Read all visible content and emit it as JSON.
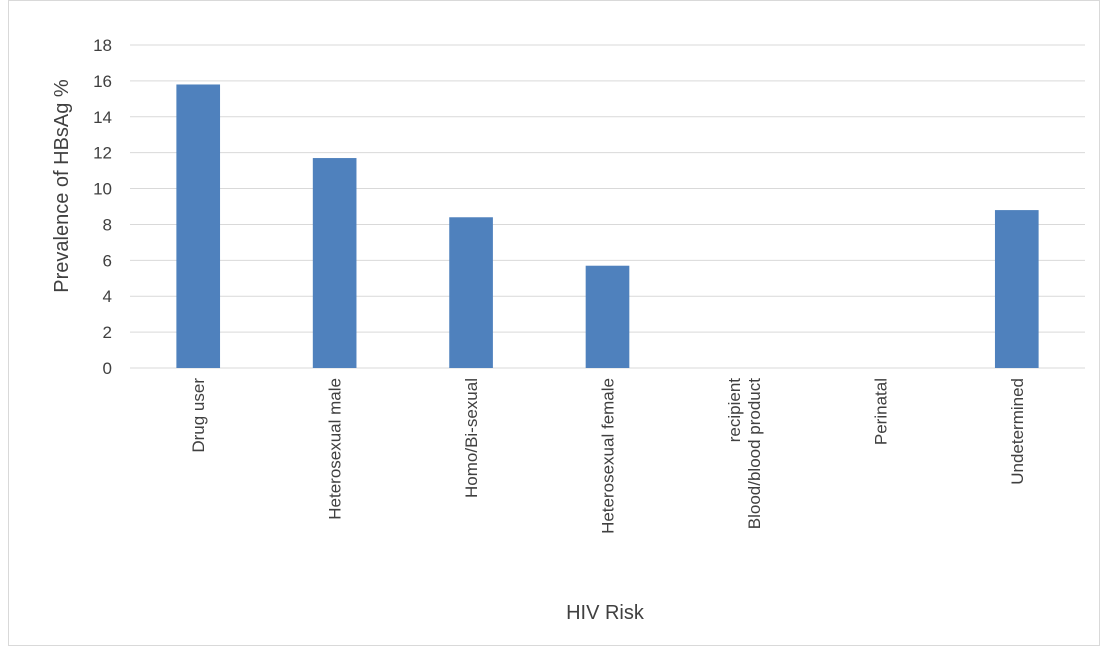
{
  "chart_data": {
    "type": "bar",
    "title": "",
    "xlabel": "HIV Risk",
    "ylabel": "Prevalence of HBsAg %",
    "categories": [
      [
        "Drug user"
      ],
      [
        "Heterosexual male"
      ],
      [
        "Homo/Bi-sexual"
      ],
      [
        "Heterosexual female"
      ],
      [
        "Blood/blood product",
        "recipient"
      ],
      [
        "Perinatal"
      ],
      [
        "Undetermined"
      ]
    ],
    "values": [
      15.8,
      11.7,
      8.4,
      5.7,
      0,
      0,
      8.8
    ],
    "ylim": [
      0,
      18
    ],
    "yticks": [
      0,
      2,
      4,
      6,
      8,
      10,
      12,
      14,
      16,
      18
    ],
    "grid": true,
    "legend": "none",
    "colors": {
      "bar": "#4f81bd",
      "grid": "#d9d9d9",
      "text": "#404040"
    }
  }
}
